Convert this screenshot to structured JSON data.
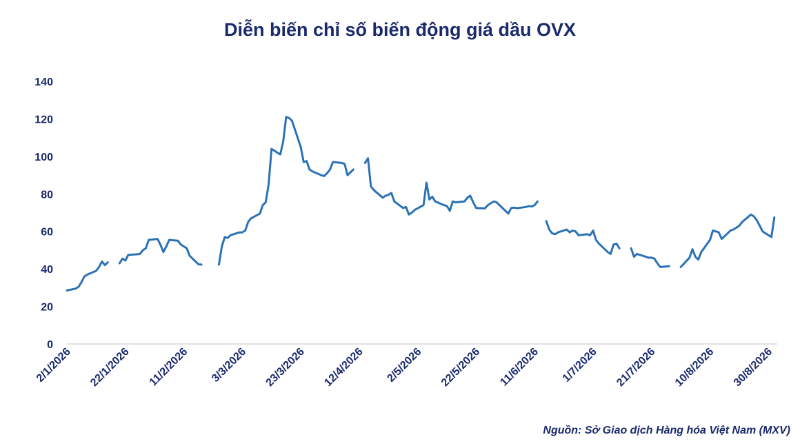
{
  "title": "Diễn biến chỉ số biến động giá dầu OVX",
  "source": "Nguồn: Sở Giao dịch Hàng hóa Việt Nam (MXV)",
  "colors": {
    "line": "#2a72b5",
    "text": "#1a2a6c",
    "axis": "#d9d9d9"
  },
  "chart_data": {
    "type": "line",
    "title": "Diễn biến chỉ số biến động giá dầu OVX",
    "xlabel": "",
    "ylabel": "",
    "x_range": [
      "2026-01-02",
      "2026-09-02"
    ],
    "ylim": [
      0,
      140
    ],
    "yticks": [
      0,
      20,
      40,
      60,
      80,
      100,
      120,
      140
    ],
    "xticks": [
      {
        "date": "2026-01-02",
        "label": "2/1/2026"
      },
      {
        "date": "2026-01-22",
        "label": "22/1/2026"
      },
      {
        "date": "2026-02-11",
        "label": "11/2/2026"
      },
      {
        "date": "2026-03-03",
        "label": "3/3/2026"
      },
      {
        "date": "2026-03-23",
        "label": "23/3/2026"
      },
      {
        "date": "2026-04-12",
        "label": "12/4/2026"
      },
      {
        "date": "2026-05-02",
        "label": "2/5/2026"
      },
      {
        "date": "2026-05-22",
        "label": "22/5/2026"
      },
      {
        "date": "2026-06-11",
        "label": "11/6/2026"
      },
      {
        "date": "2026-07-01",
        "label": "1/7/2026"
      },
      {
        "date": "2026-07-21",
        "label": "21/7/2026"
      },
      {
        "date": "2026-08-10",
        "label": "10/8/2026"
      },
      {
        "date": "2026-08-30",
        "label": "30/8/2026"
      }
    ],
    "grid": false,
    "series": [
      {
        "segments": [
          [
            [
              "2026-01-02",
              28.5
            ],
            [
              "2026-01-05",
              29.5
            ],
            [
              "2026-01-06",
              30.5
            ],
            [
              "2026-01-07",
              33
            ],
            [
              "2026-01-08",
              36
            ],
            [
              "2026-01-09",
              37
            ],
            [
              "2026-01-12",
              39
            ],
            [
              "2026-01-13",
              41
            ],
            [
              "2026-01-14",
              44
            ],
            [
              "2026-01-15",
              42
            ],
            [
              "2026-01-16",
              43.5
            ]
          ],
          [
            [
              "2026-01-20",
              43
            ],
            [
              "2026-01-21",
              45.5
            ],
            [
              "2026-01-22",
              44.5
            ],
            [
              "2026-01-23",
              47.5
            ],
            [
              "2026-01-26",
              47.8
            ],
            [
              "2026-01-27",
              48
            ],
            [
              "2026-01-28",
              50
            ],
            [
              "2026-01-29",
              51
            ],
            [
              "2026-01-30",
              55.5
            ],
            [
              "2026-02-02",
              56
            ],
            [
              "2026-02-03",
              53
            ],
            [
              "2026-02-04",
              49
            ],
            [
              "2026-02-05",
              52
            ],
            [
              "2026-02-06",
              55.5
            ],
            [
              "2026-02-09",
              55
            ],
            [
              "2026-02-10",
              53
            ],
            [
              "2026-02-11",
              52
            ],
            [
              "2026-02-12",
              51
            ],
            [
              "2026-02-13",
              47
            ],
            [
              "2026-02-16",
              42.5
            ],
            [
              "2026-02-17",
              42.3
            ]
          ],
          [
            [
              "2026-02-23",
              42.3
            ],
            [
              "2026-02-24",
              52
            ],
            [
              "2026-02-25",
              57
            ],
            [
              "2026-02-26",
              56.5
            ],
            [
              "2026-02-27",
              58
            ],
            [
              "2026-03-02",
              59.5
            ],
            [
              "2026-03-03",
              59.5
            ],
            [
              "2026-03-04",
              60.5
            ],
            [
              "2026-03-05",
              65
            ],
            [
              "2026-03-06",
              67
            ],
            [
              "2026-03-09",
              69.5
            ],
            [
              "2026-03-10",
              74
            ],
            [
              "2026-03-11",
              75.5
            ],
            [
              "2026-03-12",
              85
            ],
            [
              "2026-03-13",
              104
            ],
            [
              "2026-03-16",
              101
            ],
            [
              "2026-03-17",
              108
            ],
            [
              "2026-03-18",
              121
            ],
            [
              "2026-03-19",
              120.5
            ],
            [
              "2026-03-20",
              119
            ],
            [
              "2026-03-23",
              105
            ],
            [
              "2026-03-24",
              97
            ],
            [
              "2026-03-25",
              97.5
            ],
            [
              "2026-03-26",
              93
            ],
            [
              "2026-03-27",
              92
            ],
            [
              "2026-03-30",
              90
            ],
            [
              "2026-03-31",
              89.5
            ],
            [
              "2026-04-01",
              91
            ],
            [
              "2026-04-02",
              93
            ],
            [
              "2026-04-03",
              97
            ],
            [
              "2026-04-06",
              96.5
            ],
            [
              "2026-04-07",
              96
            ],
            [
              "2026-04-08",
              90
            ],
            [
              "2026-04-09",
              91.5
            ],
            [
              "2026-04-10",
              93
            ]
          ],
          [
            [
              "2026-04-14",
              96.5
            ],
            [
              "2026-04-15",
              99
            ],
            [
              "2026-04-16",
              84
            ],
            [
              "2026-04-17",
              82
            ],
            [
              "2026-04-20",
              78
            ],
            [
              "2026-04-21",
              79
            ],
            [
              "2026-04-22",
              79.5
            ],
            [
              "2026-04-23",
              80.5
            ],
            [
              "2026-04-24",
              76
            ],
            [
              "2026-04-27",
              72.5
            ],
            [
              "2026-04-28",
              73
            ],
            [
              "2026-04-29",
              69
            ],
            [
              "2026-04-30",
              70
            ],
            [
              "2026-05-01",
              71.5
            ],
            [
              "2026-05-04",
              74
            ],
            [
              "2026-05-05",
              86
            ],
            [
              "2026-05-06",
              77
            ],
            [
              "2026-05-07",
              78.5
            ],
            [
              "2026-05-08",
              76
            ],
            [
              "2026-05-11",
              74
            ],
            [
              "2026-05-12",
              73.5
            ],
            [
              "2026-05-13",
              71
            ],
            [
              "2026-05-14",
              76
            ],
            [
              "2026-05-15",
              75.5
            ],
            [
              "2026-05-18",
              76
            ],
            [
              "2026-05-19",
              78
            ],
            [
              "2026-05-20",
              79
            ],
            [
              "2026-05-21",
              75.5
            ],
            [
              "2026-05-22",
              72.5
            ],
            [
              "2026-05-25",
              72.3
            ],
            [
              "2026-05-26",
              74
            ],
            [
              "2026-05-27",
              75
            ],
            [
              "2026-05-28",
              76
            ],
            [
              "2026-05-29",
              75.5
            ],
            [
              "2026-06-01",
              71
            ],
            [
              "2026-06-02",
              69.5
            ],
            [
              "2026-06-03",
              72.5
            ],
            [
              "2026-06-04",
              72.7
            ],
            [
              "2026-06-05",
              72.4
            ],
            [
              "2026-06-08",
              73
            ],
            [
              "2026-06-09",
              73.5
            ],
            [
              "2026-06-10",
              73.3
            ],
            [
              "2026-06-11",
              74
            ],
            [
              "2026-06-12",
              76
            ]
          ],
          [
            [
              "2026-06-15",
              65.5
            ],
            [
              "2026-06-16",
              61
            ],
            [
              "2026-06-17",
              59
            ],
            [
              "2026-06-18",
              58.5
            ],
            [
              "2026-06-19",
              59.5
            ],
            [
              "2026-06-22",
              61
            ],
            [
              "2026-06-23",
              59.5
            ],
            [
              "2026-06-24",
              60.5
            ],
            [
              "2026-06-25",
              60
            ],
            [
              "2026-06-26",
              58
            ],
            [
              "2026-06-29",
              58.5
            ],
            [
              "2026-06-30",
              58
            ],
            [
              "2026-07-01",
              60.5
            ],
            [
              "2026-07-02",
              55.5
            ],
            [
              "2026-07-03",
              53.5
            ],
            [
              "2026-07-06",
              49
            ],
            [
              "2026-07-07",
              48
            ],
            [
              "2026-07-08",
              53
            ],
            [
              "2026-07-09",
              53.5
            ],
            [
              "2026-07-10",
              51
            ]
          ],
          [
            [
              "2026-07-14",
              51
            ],
            [
              "2026-07-15",
              46.5
            ],
            [
              "2026-07-16",
              48
            ],
            [
              "2026-07-17",
              47.5
            ],
            [
              "2026-07-20",
              46
            ],
            [
              "2026-07-21",
              46
            ],
            [
              "2026-07-22",
              45.5
            ],
            [
              "2026-07-23",
              43
            ],
            [
              "2026-07-24",
              41
            ],
            [
              "2026-07-27",
              41.5
            ]
          ],
          [
            [
              "2026-07-31",
              41
            ],
            [
              "2026-08-03",
              46
            ],
            [
              "2026-08-04",
              50.5
            ],
            [
              "2026-08-05",
              46.5
            ],
            [
              "2026-08-06",
              45
            ],
            [
              "2026-08-07",
              49
            ],
            [
              "2026-08-10",
              55.5
            ],
            [
              "2026-08-11",
              60.5
            ],
            [
              "2026-08-12",
              60
            ],
            [
              "2026-08-13",
              59.5
            ],
            [
              "2026-08-14",
              56
            ],
            [
              "2026-08-17",
              60.5
            ],
            [
              "2026-08-18",
              61
            ],
            [
              "2026-08-19",
              62
            ],
            [
              "2026-08-20",
              63
            ],
            [
              "2026-08-21",
              65
            ],
            [
              "2026-08-24",
              69
            ],
            [
              "2026-08-25",
              68
            ],
            [
              "2026-08-26",
              66
            ],
            [
              "2026-08-27",
              63
            ],
            [
              "2026-08-28",
              60
            ],
            [
              "2026-08-31",
              57
            ],
            [
              "2026-09-01",
              67.5
            ]
          ]
        ]
      }
    ]
  }
}
